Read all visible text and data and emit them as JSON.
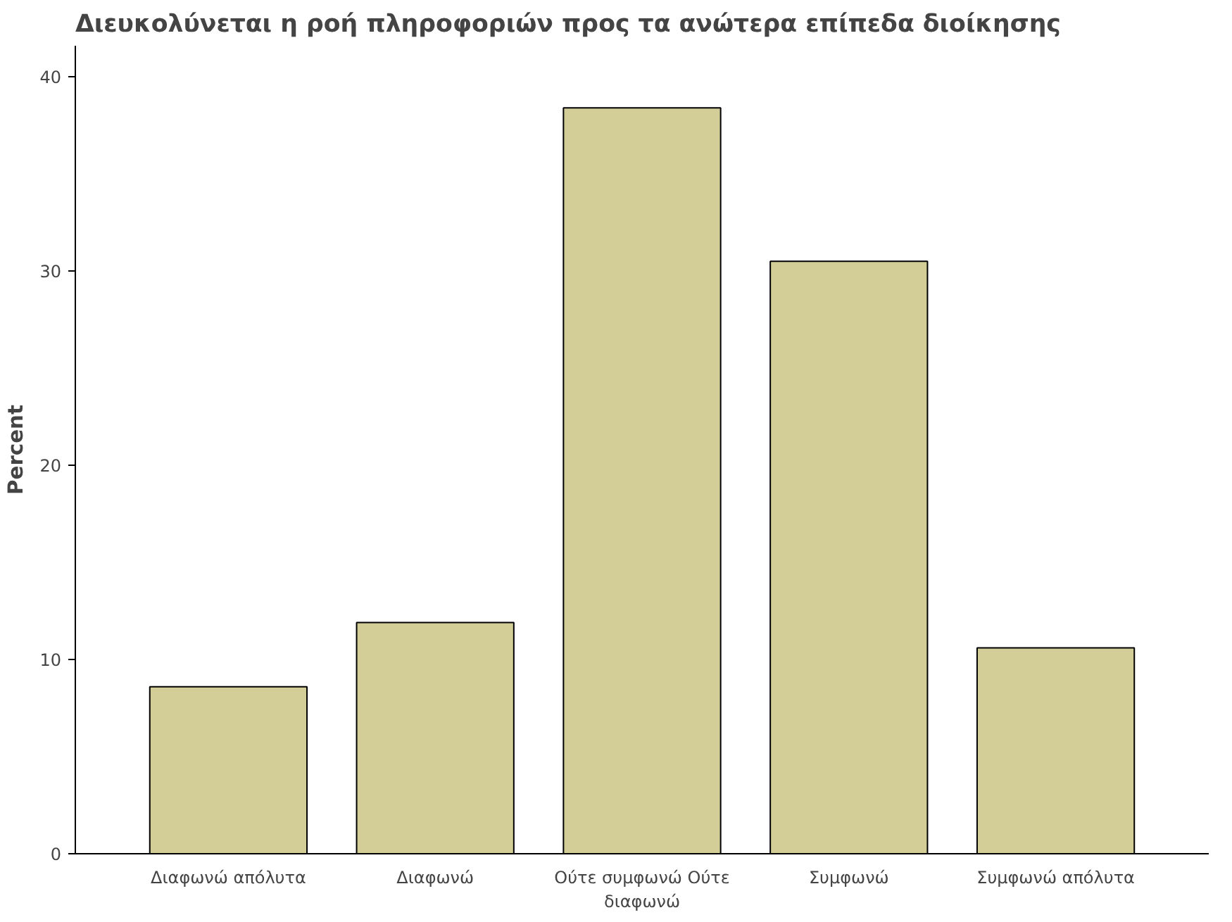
{
  "chart_data": {
    "type": "bar",
    "title": "Διευκολύνεται η ροή πληροφοριών προς τα ανώτερα επίπεδα διοίκησης",
    "ylabel": "Percent",
    "categories": [
      "Διαφωνώ απόλυτα",
      "Διαφωνώ",
      "Ούτε συμφωνώ Ούτε διαφωνώ",
      "Συμφωνώ",
      "Συμφωνώ απόλυτα"
    ],
    "values": [
      8.6,
      11.9,
      38.4,
      30.5,
      10.6
    ],
    "color": "#d3ce97",
    "ylim": [
      0,
      41.6
    ],
    "yticks": [
      0,
      10,
      20,
      30,
      40
    ],
    "grid": false
  }
}
